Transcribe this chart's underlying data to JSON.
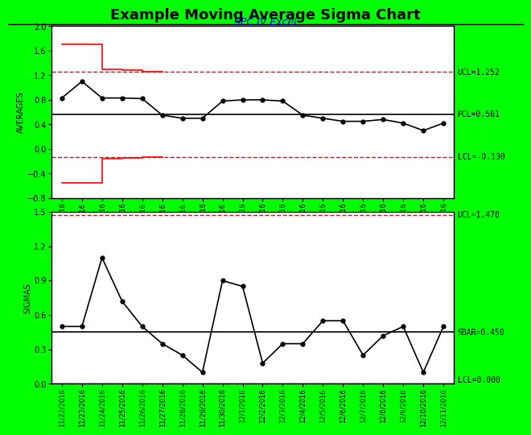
{
  "title": "Example Moving Average Sigma Chart",
  "subtitle": "SPC IV Excel",
  "title_color": "#000000",
  "subtitle_color": "#0000CC",
  "fig_bg": "#00FF00",
  "plot_bg": "#FFFFFF",
  "dates": [
    "11/22/2016",
    "11/23/2016",
    "11/24/2016",
    "11/25/2016",
    "11/26/2016",
    "11/27/2016",
    "11/28/2016",
    "11/29/2016",
    "11/30/2016",
    "12/1/2016",
    "12/2/2016",
    "12/3/2016",
    "12/4/2016",
    "12/5/2016",
    "12/6/2016",
    "12/7/2016",
    "12/8/2016",
    "12/9/2016",
    "12/10/2016",
    "12/11/2016"
  ],
  "avg_values": [
    0.83,
    1.1,
    0.83,
    0.83,
    0.82,
    0.55,
    0.5,
    0.5,
    0.78,
    0.8,
    0.8,
    0.78,
    0.55,
    0.5,
    0.45,
    0.45,
    0.48,
    0.42,
    0.3,
    0.42
  ],
  "UCL_avg": 1.252,
  "PCL_avg": 0.561,
  "LCL_avg": -0.13,
  "ucl_avg_early_x": [
    0,
    1,
    2,
    3,
    4,
    5
  ],
  "ucl_avg_early_y": [
    1.7,
    1.7,
    1.3,
    1.28,
    1.255,
    1.252
  ],
  "lcl_avg_early_x": [
    0,
    1,
    2,
    3,
    4,
    5
  ],
  "lcl_avg_early_y": [
    -0.55,
    -0.55,
    -0.16,
    -0.14,
    -0.132,
    -0.13
  ],
  "sigma_values": [
    0.5,
    0.5,
    1.1,
    0.72,
    0.5,
    0.35,
    0.25,
    0.1,
    0.9,
    0.85,
    0.18,
    0.35,
    0.35,
    0.55,
    0.55,
    0.25,
    0.42,
    0.5,
    0.1,
    0.5
  ],
  "UCL_sigma": 1.47,
  "SBAR": 0.45,
  "LCL_sigma": 0.0,
  "avg_ylim": [
    -0.8,
    2.0
  ],
  "sigma_ylim": [
    0.0,
    1.5
  ],
  "avg_yticks": [
    -0.8,
    -0.4,
    0.0,
    0.4,
    0.8,
    1.2,
    1.6,
    2.0
  ],
  "sigma_yticks": [
    0.0,
    0.3,
    0.6,
    0.9,
    1.2,
    1.5
  ],
  "line_color": "#000000",
  "marker_color": "#000000",
  "ucl_lcl_color": "#FF0000",
  "pcl_sbar_color": "#000000",
  "ylabel_avg": "AVERAGES",
  "ylabel_sigma": "SIGMAS",
  "title_fontsize": 13,
  "subtitle_fontsize": 9,
  "label_fontsize": 7,
  "tick_fontsize": 7,
  "annot_fontsize": 7,
  "date_fontsize": 6
}
